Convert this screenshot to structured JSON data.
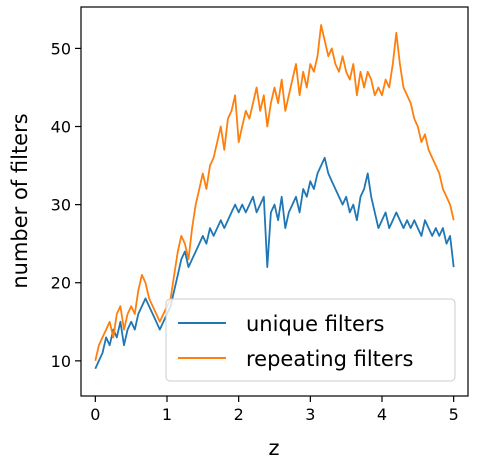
{
  "chart_data": {
    "type": "line",
    "xlabel": "z",
    "ylabel": "number of filters",
    "xlim": [
      -0.2,
      5.2
    ],
    "ylim": [
      5.5,
      55.3
    ],
    "xticks": [
      0,
      1,
      2,
      3,
      4,
      5
    ],
    "yticks": [
      10,
      20,
      30,
      40,
      50
    ],
    "grid": false,
    "legend_position": "lower-right",
    "series": [
      {
        "name": "unique filters",
        "color": "#1f77b4",
        "x": [
          0.0,
          0.05,
          0.1,
          0.15,
          0.2,
          0.25,
          0.3,
          0.35,
          0.4,
          0.45,
          0.5,
          0.55,
          0.6,
          0.65,
          0.7,
          0.75,
          0.8,
          0.85,
          0.9,
          0.95,
          1.0,
          1.05,
          1.1,
          1.15,
          1.2,
          1.25,
          1.3,
          1.35,
          1.4,
          1.45,
          1.5,
          1.55,
          1.6,
          1.65,
          1.7,
          1.75,
          1.8,
          1.85,
          1.9,
          1.95,
          2.0,
          2.05,
          2.1,
          2.15,
          2.2,
          2.25,
          2.3,
          2.35,
          2.4,
          2.45,
          2.5,
          2.55,
          2.6,
          2.65,
          2.7,
          2.75,
          2.8,
          2.85,
          2.9,
          2.95,
          3.0,
          3.05,
          3.1,
          3.15,
          3.2,
          3.25,
          3.3,
          3.35,
          3.4,
          3.45,
          3.5,
          3.55,
          3.6,
          3.65,
          3.7,
          3.75,
          3.8,
          3.85,
          3.9,
          3.95,
          4.0,
          4.05,
          4.1,
          4.15,
          4.2,
          4.25,
          4.3,
          4.35,
          4.4,
          4.45,
          4.5,
          4.55,
          4.6,
          4.65,
          4.7,
          4.75,
          4.8,
          4.85,
          4.9,
          4.95,
          5.0
        ],
        "values": [
          9,
          10,
          11,
          13,
          12,
          14,
          13,
          15,
          12,
          14,
          15,
          14,
          16,
          17,
          18,
          17,
          16,
          15,
          14,
          15,
          16,
          17,
          19,
          21,
          23,
          24,
          22,
          23,
          24,
          25,
          26,
          25,
          27,
          26,
          27,
          28,
          27,
          28,
          29,
          30,
          29,
          30,
          29,
          30,
          31,
          29,
          30,
          31,
          22,
          29,
          30,
          28,
          31,
          27,
          29,
          30,
          31,
          29,
          32,
          31,
          33,
          32,
          34,
          35,
          36,
          34,
          33,
          32,
          31,
          30,
          31,
          29,
          30,
          28,
          31,
          32,
          34,
          31,
          29,
          27,
          28,
          29,
          27,
          28,
          29,
          28,
          27,
          28,
          27,
          28,
          27,
          26,
          28,
          27,
          26,
          27,
          26,
          27,
          25,
          26,
          22
        ]
      },
      {
        "name": "repeating filters",
        "color": "#ff7f0e",
        "x": [
          0.0,
          0.05,
          0.1,
          0.15,
          0.2,
          0.25,
          0.3,
          0.35,
          0.4,
          0.45,
          0.5,
          0.55,
          0.6,
          0.65,
          0.7,
          0.75,
          0.8,
          0.85,
          0.9,
          0.95,
          1.0,
          1.05,
          1.1,
          1.15,
          1.2,
          1.25,
          1.3,
          1.35,
          1.4,
          1.45,
          1.5,
          1.55,
          1.6,
          1.65,
          1.7,
          1.75,
          1.8,
          1.85,
          1.9,
          1.95,
          2.0,
          2.05,
          2.1,
          2.15,
          2.2,
          2.25,
          2.3,
          2.35,
          2.4,
          2.45,
          2.5,
          2.55,
          2.6,
          2.65,
          2.7,
          2.75,
          2.8,
          2.85,
          2.9,
          2.95,
          3.0,
          3.05,
          3.1,
          3.15,
          3.2,
          3.25,
          3.3,
          3.35,
          3.4,
          3.45,
          3.5,
          3.55,
          3.6,
          3.65,
          3.7,
          3.75,
          3.8,
          3.85,
          3.9,
          3.95,
          4.0,
          4.05,
          4.1,
          4.15,
          4.2,
          4.25,
          4.3,
          4.35,
          4.4,
          4.45,
          4.5,
          4.55,
          4.6,
          4.65,
          4.7,
          4.75,
          4.8,
          4.85,
          4.9,
          4.95,
          5.0
        ],
        "values": [
          10,
          12,
          13,
          14,
          15,
          13,
          16,
          17,
          14,
          16,
          17,
          16,
          19,
          21,
          20,
          18,
          17,
          16,
          15,
          16,
          17,
          18,
          21,
          24,
          26,
          25,
          23,
          27,
          30,
          32,
          34,
          32,
          35,
          36,
          38,
          40,
          37,
          41,
          42,
          44,
          38,
          40,
          42,
          41,
          43,
          45,
          42,
          44,
          40,
          43,
          45,
          43,
          46,
          42,
          44,
          46,
          48,
          44,
          47,
          45,
          48,
          47,
          49,
          53,
          51,
          49,
          50,
          48,
          47,
          49,
          47,
          46,
          48,
          44,
          47,
          45,
          47,
          46,
          44,
          45,
          44,
          46,
          45,
          48,
          52,
          48,
          45,
          44,
          43,
          41,
          40,
          38,
          39,
          37,
          36,
          35,
          34,
          32,
          31,
          30,
          28
        ]
      }
    ]
  }
}
